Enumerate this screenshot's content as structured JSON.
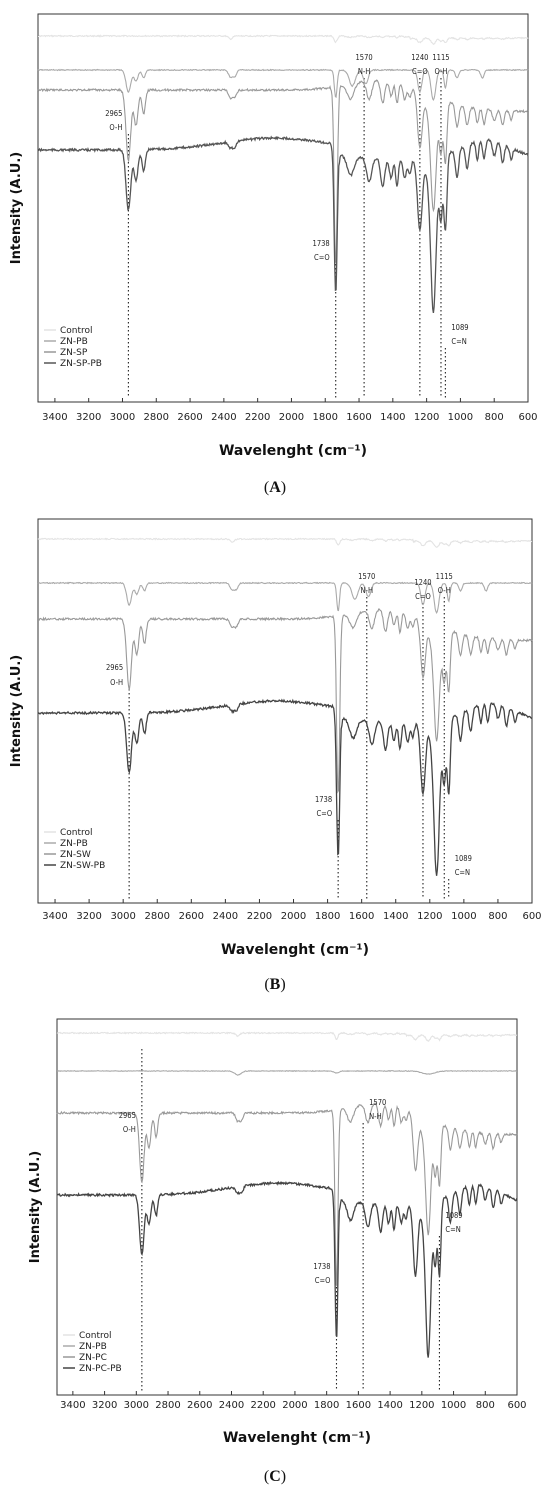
{
  "panels": [
    {
      "caption_letter": "A",
      "chart_data": {
        "type": "line",
        "xlabel": "Wavelenght (cm⁻¹)",
        "ylabel": "Intensity (A.U.)",
        "xlim": [
          3500,
          600
        ],
        "x_ticks": [
          3400,
          3200,
          3000,
          2800,
          2600,
          2400,
          2200,
          2000,
          1800,
          1600,
          1400,
          1200,
          1000,
          800,
          600
        ],
        "y_ticks_shown": false,
        "legend_position": "bottom-left",
        "series": [
          {
            "name": "Control",
            "color": "#e3e3e3"
          },
          {
            "name": "ZN-PB",
            "color": "#aaaaaa"
          },
          {
            "name": "ZN-SP",
            "color": "#999999"
          },
          {
            "name": "ZN-SP-PB",
            "color": "#555555"
          }
        ],
        "annotations": [
          {
            "x": 2965,
            "line1": "2965",
            "line2": "O-H",
            "side": "left"
          },
          {
            "x": 1738,
            "line1": "1738",
            "line2": "C=O",
            "side": "left"
          },
          {
            "x": 1570,
            "line1": "1570",
            "line2": "N-H",
            "side": "top"
          },
          {
            "x": 1240,
            "line1": "1240",
            "line2": "C=O",
            "side": "top"
          },
          {
            "x": 1115,
            "line1": "1115",
            "line2": "O-H",
            "side": "top"
          },
          {
            "x": 1089,
            "line1": "1089",
            "line2": "C=N",
            "side": "right"
          }
        ]
      }
    },
    {
      "caption_letter": "B",
      "chart_data": {
        "type": "line",
        "xlabel": "Wavelenght (cm⁻¹)",
        "ylabel": "Intensity (A.U.)",
        "xlim": [
          3500,
          600
        ],
        "x_ticks": [
          3400,
          3200,
          3000,
          2800,
          2600,
          2400,
          2200,
          2000,
          1800,
          1600,
          1400,
          1200,
          1000,
          800,
          600
        ],
        "y_ticks_shown": false,
        "legend_position": "bottom-left",
        "series": [
          {
            "name": "Control",
            "color": "#e3e3e3"
          },
          {
            "name": "ZN-PB",
            "color": "#aaaaaa"
          },
          {
            "name": "ZN-SW",
            "color": "#999999"
          },
          {
            "name": "ZN-SW-PB",
            "color": "#444444"
          }
        ],
        "annotations": [
          {
            "x": 2965,
            "line1": "2965",
            "line2": "O-H",
            "side": "left"
          },
          {
            "x": 1738,
            "line1": "1738",
            "line2": "C=O",
            "side": "left"
          },
          {
            "x": 1570,
            "line1": "1570",
            "line2": "N-H",
            "side": "top"
          },
          {
            "x": 1240,
            "line1": "1240",
            "line2": "C=O",
            "side": "top"
          },
          {
            "x": 1115,
            "line1": "1115",
            "line2": "O-H",
            "side": "top"
          },
          {
            "x": 1089,
            "line1": "1089",
            "line2": "C=N",
            "side": "right"
          }
        ]
      }
    },
    {
      "caption_letter": "C",
      "chart_data": {
        "type": "line",
        "xlabel": "Wavelenght (cm⁻¹)",
        "ylabel": "Intensity (A.U.)",
        "xlim": [
          3500,
          600
        ],
        "x_ticks": [
          3400,
          3200,
          3000,
          2800,
          2600,
          2400,
          2200,
          2000,
          1800,
          1600,
          1400,
          1200,
          1000,
          800,
          600
        ],
        "y_ticks_shown": false,
        "legend_position": "bottom-left",
        "series": [
          {
            "name": "Control",
            "color": "#e3e3e3"
          },
          {
            "name": "ZN-PB",
            "color": "#aaaaaa"
          },
          {
            "name": "ZN-PC",
            "color": "#999999"
          },
          {
            "name": "ZN-PC-PB",
            "color": "#444444"
          }
        ],
        "annotations": [
          {
            "x": 2965,
            "line1": "2965",
            "line2": "O-H",
            "side": "left"
          },
          {
            "x": 1738,
            "line1": "1738",
            "line2": "C=O",
            "side": "left"
          },
          {
            "x": 1570,
            "line1": "1570",
            "line2": "N-H",
            "side": "right"
          },
          {
            "x": 1089,
            "line1": "1089",
            "line2": "C=N",
            "side": "right"
          }
        ]
      }
    }
  ]
}
